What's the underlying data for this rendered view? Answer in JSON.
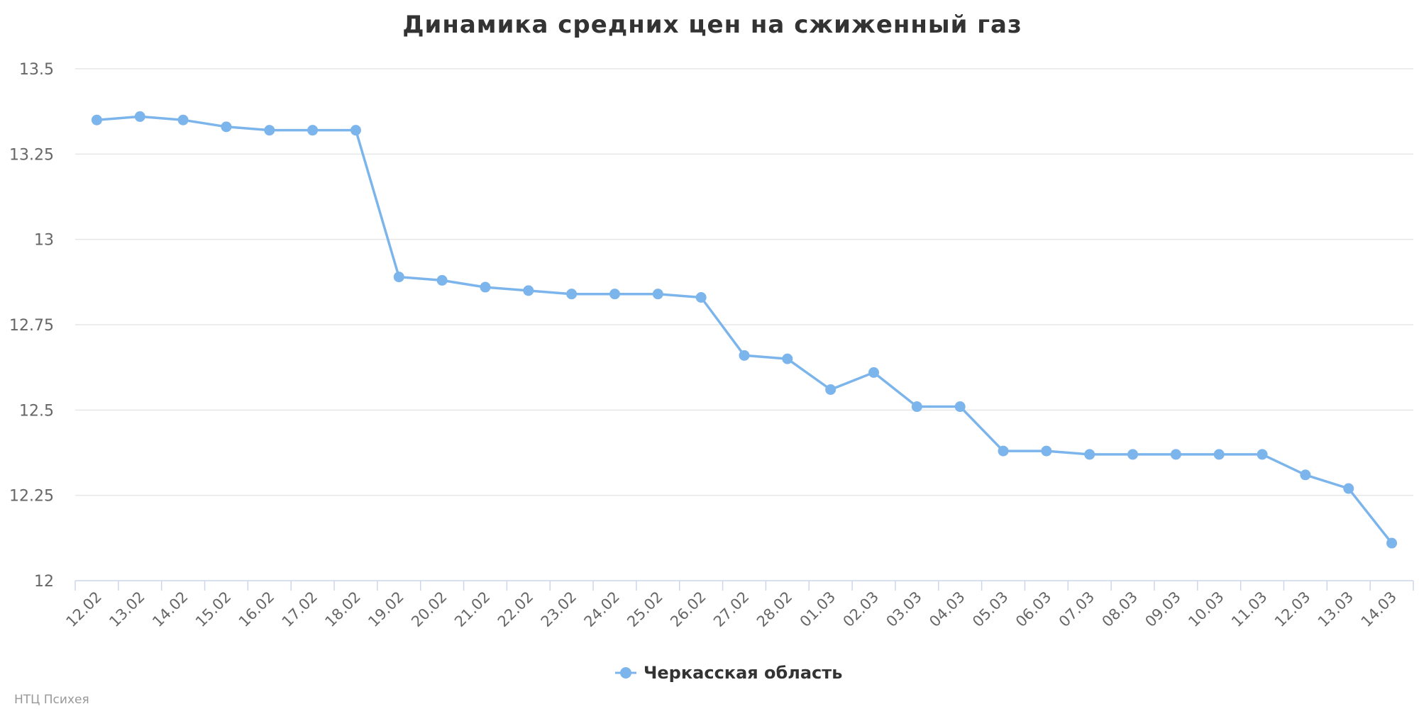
{
  "chart_data": {
    "type": "line",
    "title": "Динамика средних цен на сжиженный газ",
    "categories": [
      "12.02",
      "13.02",
      "14.02",
      "15.02",
      "16.02",
      "17.02",
      "18.02",
      "19.02",
      "20.02",
      "21.02",
      "22.02",
      "23.02",
      "24.02",
      "25.02",
      "26.02",
      "27.02",
      "28.02",
      "01.03",
      "02.03",
      "03.03",
      "04.03",
      "05.03",
      "06.03",
      "07.03",
      "08.03",
      "09.03",
      "10.03",
      "11.03",
      "12.03",
      "13.03",
      "14.03"
    ],
    "series": [
      {
        "name": "Черкасская область",
        "color": "#7cb5ec",
        "values": [
          13.35,
          13.36,
          13.35,
          13.33,
          13.32,
          13.32,
          13.32,
          12.89,
          12.88,
          12.86,
          12.85,
          12.84,
          12.84,
          12.84,
          12.83,
          12.66,
          12.65,
          12.56,
          12.61,
          12.51,
          12.51,
          12.38,
          12.38,
          12.37,
          12.37,
          12.37,
          12.37,
          12.37,
          12.31,
          12.27,
          12.11
        ]
      }
    ],
    "y_ticks": [
      "12",
      "12.25",
      "12.5",
      "12.75",
      "13",
      "13.25",
      "13.5"
    ],
    "ylim": [
      12,
      13.5
    ],
    "grid": true,
    "legend_position": "bottom-center"
  },
  "credits": "НТЦ Психея"
}
